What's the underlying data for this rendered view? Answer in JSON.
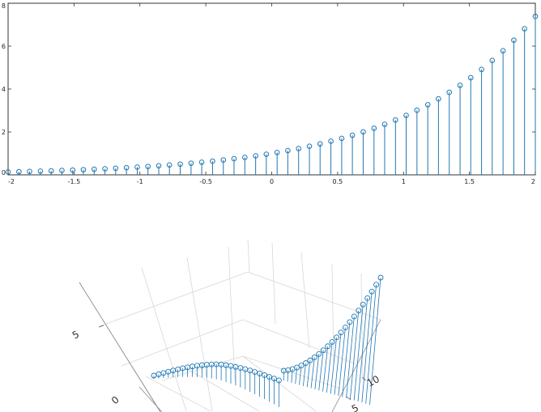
{
  "chart_data": [
    {
      "type": "stem",
      "x": [
        -2.0,
        -1.918,
        -1.837,
        -1.755,
        -1.673,
        -1.592,
        -1.51,
        -1.429,
        -1.347,
        -1.265,
        -1.184,
        -1.102,
        -1.02,
        -0.939,
        -0.857,
        -0.776,
        -0.694,
        -0.612,
        -0.531,
        -0.449,
        -0.367,
        -0.286,
        -0.204,
        -0.122,
        -0.041,
        0.041,
        0.122,
        0.204,
        0.286,
        0.367,
        0.449,
        0.531,
        0.612,
        0.694,
        0.776,
        0.857,
        0.939,
        1.02,
        1.102,
        1.184,
        1.265,
        1.347,
        1.429,
        1.51,
        1.592,
        1.673,
        1.755,
        1.837,
        1.918,
        2.0
      ],
      "values": [
        0.135,
        0.147,
        0.159,
        0.173,
        0.188,
        0.204,
        0.221,
        0.24,
        0.26,
        0.282,
        0.306,
        0.332,
        0.361,
        0.391,
        0.424,
        0.46,
        0.5,
        0.542,
        0.588,
        0.638,
        0.693,
        0.751,
        0.815,
        0.885,
        0.96,
        1.042,
        1.13,
        1.226,
        1.331,
        1.444,
        1.567,
        1.7,
        1.845,
        2.002,
        2.172,
        2.357,
        2.557,
        2.774,
        3.011,
        3.267,
        3.544,
        3.846,
        4.174,
        4.529,
        4.914,
        5.332,
        5.786,
        6.278,
        6.811,
        7.389
      ],
      "xlim": [
        -2,
        2
      ],
      "ylim": [
        0,
        8
      ],
      "xticks": [
        "-2",
        "-1.5",
        "-1",
        "-0.5",
        "0",
        "0.5",
        "1",
        "1.5",
        "2"
      ],
      "yticks": [
        "0",
        "2",
        "4",
        "6",
        "8"
      ],
      "grid": false,
      "color": "#1f77b4"
    },
    {
      "type": "stem3",
      "grid": true,
      "color": "#1f77b4",
      "visible_tick_labels": [
        {
          "axis": "z",
          "text": "5"
        },
        {
          "axis": "y",
          "text": "10"
        },
        {
          "axis": "y",
          "text": "5"
        },
        {
          "axis": "x",
          "text": "0"
        }
      ]
    }
  ]
}
